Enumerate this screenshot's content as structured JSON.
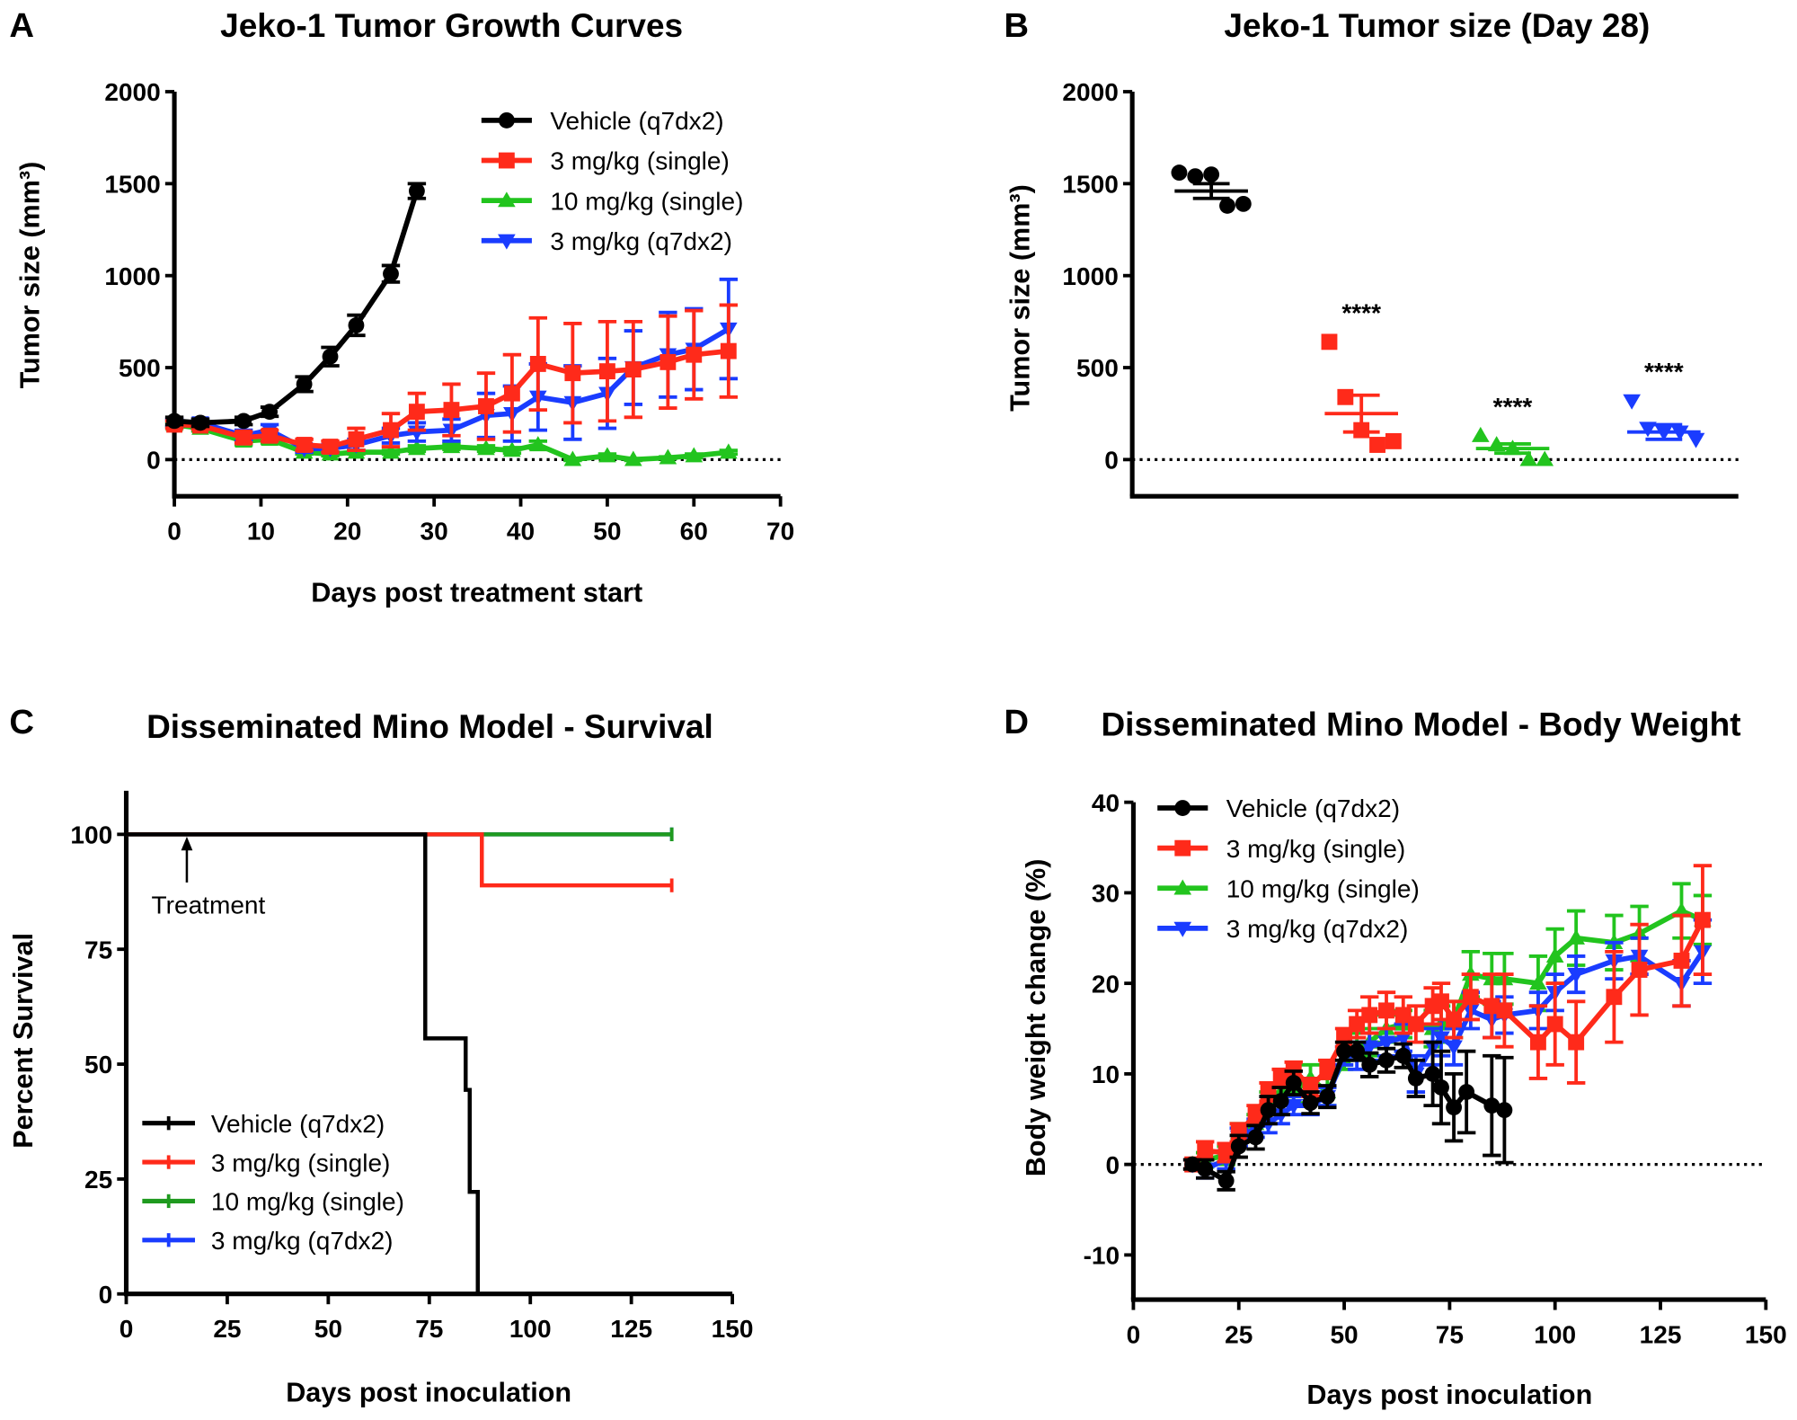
{
  "chart_data": [
    {
      "panel": "A",
      "type": "line",
      "title": "Jeko-1 Tumor Growth Curves",
      "xlabel": "Days post treatment start",
      "ylabel": "Tumor size (mm³)",
      "xlim": [
        0,
        70
      ],
      "ylim": [
        -200,
        2000
      ],
      "xticks": [
        0,
        10,
        20,
        30,
        40,
        50,
        60,
        70
      ],
      "yticks": [
        0,
        500,
        1000,
        1500,
        2000
      ],
      "reference_line_y": 0,
      "legend": "top-right",
      "series": [
        {
          "name": "Vehicle (q7dx2)",
          "color": "#000000",
          "marker": "circle",
          "x": [
            0,
            3,
            8,
            11,
            15,
            18,
            21,
            25,
            28
          ],
          "y": [
            210,
            200,
            210,
            260,
            410,
            560,
            730,
            1010,
            1460
          ],
          "err": [
            20,
            20,
            20,
            25,
            40,
            50,
            55,
            45,
            40
          ]
        },
        {
          "name": "3 mg/kg (single)",
          "color": "#ff2a1a",
          "marker": "square",
          "x": [
            0,
            3,
            8,
            11,
            15,
            18,
            21,
            25,
            28,
            32,
            36,
            39,
            42,
            46,
            50,
            53,
            57,
            60,
            64
          ],
          "y": [
            190,
            185,
            120,
            130,
            80,
            70,
            110,
            160,
            260,
            270,
            290,
            360,
            520,
            470,
            480,
            490,
            530,
            570,
            590
          ],
          "err": [
            20,
            20,
            30,
            30,
            30,
            30,
            60,
            90,
            100,
            140,
            180,
            210,
            250,
            270,
            270,
            260,
            250,
            240,
            250
          ]
        },
        {
          "name": "10 mg/kg (single)",
          "color": "#22c41e",
          "marker": "triangle-up",
          "x": [
            0,
            3,
            8,
            11,
            15,
            18,
            21,
            25,
            28,
            32,
            36,
            39,
            42,
            46,
            50,
            53,
            57,
            60,
            64
          ],
          "y": [
            190,
            170,
            100,
            110,
            40,
            30,
            40,
            40,
            60,
            70,
            60,
            50,
            80,
            0,
            20,
            0,
            10,
            20,
            40
          ],
          "err": [
            15,
            15,
            20,
            20,
            10,
            10,
            10,
            10,
            15,
            15,
            15,
            15,
            20,
            5,
            10,
            5,
            5,
            10,
            10
          ]
        },
        {
          "name": "3 mg/kg (q7dx2)",
          "color": "#1a3cff",
          "marker": "triangle-down",
          "x": [
            0,
            3,
            8,
            11,
            15,
            18,
            21,
            25,
            28,
            32,
            36,
            39,
            42,
            46,
            50,
            53,
            57,
            60,
            64
          ],
          "y": [
            200,
            200,
            130,
            160,
            60,
            60,
            80,
            130,
            150,
            160,
            240,
            250,
            340,
            310,
            360,
            500,
            570,
            600,
            710
          ],
          "err": [
            20,
            20,
            30,
            30,
            20,
            20,
            30,
            40,
            50,
            60,
            120,
            150,
            180,
            200,
            190,
            200,
            230,
            220,
            270
          ]
        }
      ]
    },
    {
      "panel": "B",
      "type": "scatter",
      "title": "Jeko-1 Tumor size (Day 28)",
      "ylabel": "Tumor size (mm³)",
      "ylim": [
        -200,
        2000
      ],
      "yticks": [
        0,
        500,
        1000,
        1500,
        2000
      ],
      "reference_line_y": 0,
      "groups": [
        {
          "name": "Vehicle (q7dx2)",
          "color": "#000000",
          "marker": "circle",
          "values": [
            1560,
            1540,
            1550,
            1380,
            1390
          ],
          "mean": 1460,
          "sem": 40,
          "annotation": ""
        },
        {
          "name": "3 mg/kg (single)",
          "color": "#ff2a1a",
          "marker": "square",
          "values": [
            640,
            340,
            160,
            80,
            100
          ],
          "mean": 250,
          "sem": 100,
          "annotation": "****"
        },
        {
          "name": "10 mg/kg (single)",
          "color": "#22c41e",
          "marker": "triangle-up",
          "values": [
            130,
            80,
            60,
            0,
            0
          ],
          "mean": 60,
          "sem": 25,
          "annotation": "****"
        },
        {
          "name": "3 mg/kg (q7dx2)",
          "color": "#1a3cff",
          "marker": "triangle-down",
          "values": [
            320,
            170,
            150,
            150,
            110
          ],
          "mean": 150,
          "sem": 40,
          "annotation": "****"
        }
      ]
    },
    {
      "panel": "C",
      "type": "line",
      "subtype": "kaplan-meier",
      "title": "Disseminated Mino Model - Survival",
      "xlabel": "Days post inoculation",
      "ylabel": "Percent Survival",
      "xlim": [
        0,
        150
      ],
      "ylim": [
        0,
        110
      ],
      "xticks": [
        0,
        25,
        50,
        75,
        100,
        125,
        150
      ],
      "yticks": [
        0,
        25,
        50,
        75,
        100
      ],
      "legend": "bottom-left",
      "annotation": {
        "text": "Treatment",
        "x": 15
      },
      "series": [
        {
          "name": "Vehicle (q7dx2)",
          "color": "#000000",
          "x": [
            0,
            74,
            84,
            85,
            87,
            88
          ],
          "y": [
            100,
            55.6,
            44.4,
            22.2,
            0,
            0
          ]
        },
        {
          "name": "3 mg/kg (single)",
          "color": "#ff2a1a",
          "x": [
            0,
            88,
            135
          ],
          "y": [
            100,
            88.9,
            88.9
          ]
        },
        {
          "name": "10 mg/kg (single)",
          "color": "#1f9a1f",
          "x": [
            0,
            105,
            135
          ],
          "y": [
            100,
            100,
            100
          ]
        },
        {
          "name": "3 mg/kg (q7dx2)",
          "color": "#1a3cff",
          "x": [
            0,
            135
          ],
          "y": [
            100,
            100
          ]
        }
      ]
    },
    {
      "panel": "D",
      "type": "line",
      "title": "Disseminated Mino Model - Body Weight",
      "xlabel": "Days post inoculation",
      "ylabel": "Body weight change (%)",
      "xlim": [
        0,
        150
      ],
      "ylim": [
        -15,
        40
      ],
      "xticks": [
        0,
        25,
        50,
        75,
        100,
        125,
        150
      ],
      "yticks": [
        -10,
        0,
        10,
        20,
        30,
        40
      ],
      "reference_line_y": 0,
      "legend": "top-left",
      "series": [
        {
          "name": "Vehicle (q7dx2)",
          "color": "#000000",
          "marker": "circle",
          "x": [
            14,
            17,
            22,
            25,
            29,
            32,
            35,
            38,
            42,
            46,
            50,
            53,
            56,
            60,
            64,
            67,
            71,
            73,
            76,
            79,
            85,
            88
          ],
          "y": [
            0,
            -0.5,
            -1.8,
            2,
            3,
            6,
            7,
            9,
            6.8,
            7.5,
            12.5,
            12.5,
            11,
            11.5,
            12,
            9.5,
            10,
            8.5,
            6.3,
            8,
            6.5,
            6
          ],
          "err": [
            0.5,
            1,
            1,
            1.2,
            1.3,
            1.5,
            1.5,
            1.3,
            1.2,
            1.2,
            1,
            1,
            1.3,
            1.3,
            1.3,
            2,
            3.5,
            4,
            3.7,
            4.5,
            5.5,
            5.8
          ]
        },
        {
          "name": "3 mg/kg (single)",
          "color": "#ff2a1a",
          "marker": "square",
          "x": [
            14,
            17,
            22,
            25,
            29,
            32,
            35,
            38,
            42,
            46,
            50,
            53,
            56,
            60,
            64,
            67,
            71,
            73,
            76,
            80,
            85,
            88,
            96,
            100,
            105,
            114,
            120,
            130,
            135
          ],
          "y": [
            0,
            1.5,
            1.3,
            3.5,
            5.5,
            8,
            9.5,
            10.5,
            8.5,
            10.5,
            14,
            15.5,
            16.5,
            17,
            16.5,
            15.5,
            17.5,
            18,
            16,
            18.5,
            17.5,
            17,
            13.5,
            15.5,
            13.5,
            18.5,
            21.5,
            22.5,
            27
          ],
          "err": [
            0.5,
            1,
            1,
            1,
            1,
            1,
            1,
            0.8,
            1,
            1,
            1,
            1.5,
            2,
            2,
            2,
            2,
            2,
            2,
            2,
            2.5,
            3.5,
            4,
            4,
            4.5,
            4.5,
            5,
            5,
            5,
            6
          ]
        },
        {
          "name": "10 mg/kg (single)",
          "color": "#22c41e",
          "marker": "triangle-up",
          "x": [
            14,
            17,
            22,
            25,
            29,
            32,
            35,
            38,
            42,
            46,
            50,
            53,
            56,
            60,
            64,
            71,
            73,
            76,
            80,
            85,
            88,
            96,
            100,
            105,
            114,
            120,
            130,
            135
          ],
          "y": [
            0,
            0.5,
            1,
            3.5,
            4.5,
            7,
            8,
            8,
            9.5,
            8,
            11.5,
            13,
            13.5,
            15,
            15.5,
            15,
            15.5,
            16,
            21,
            20.5,
            20.5,
            20,
            23,
            25,
            24.5,
            25.5,
            28,
            27
          ],
          "err": [
            0.5,
            0.8,
            1,
            1,
            1,
            1,
            1,
            1.2,
            1.5,
            1.5,
            1,
            1.5,
            1.5,
            1.5,
            1.5,
            2,
            2,
            2,
            2.5,
            2.8,
            2.8,
            3,
            3,
            3,
            3,
            3,
            3,
            2.7
          ]
        },
        {
          "name": "3 mg/kg (q7dx2)",
          "color": "#1a3cff",
          "marker": "triangle-down",
          "x": [
            14,
            17,
            22,
            25,
            29,
            32,
            35,
            38,
            42,
            46,
            50,
            53,
            56,
            60,
            64,
            67,
            71,
            73,
            76,
            80,
            85,
            88,
            96,
            100,
            105,
            114,
            120,
            130,
            135
          ],
          "y": [
            0,
            -0.5,
            0.5,
            3,
            4,
            4.5,
            5.5,
            6.5,
            6.5,
            7.5,
            12,
            12,
            13,
            13.5,
            14,
            10,
            13,
            14,
            13,
            17,
            16,
            16.5,
            17,
            19,
            21,
            22.5,
            23,
            20,
            23.5
          ],
          "err": [
            0.5,
            1,
            1,
            1,
            1,
            1,
            1,
            1,
            1,
            1,
            1,
            1.5,
            1.5,
            1.5,
            1.5,
            2,
            2,
            2,
            2,
            2,
            2,
            2,
            2,
            2,
            2,
            2,
            2,
            2.5,
            3.5
          ]
        }
      ]
    }
  ]
}
